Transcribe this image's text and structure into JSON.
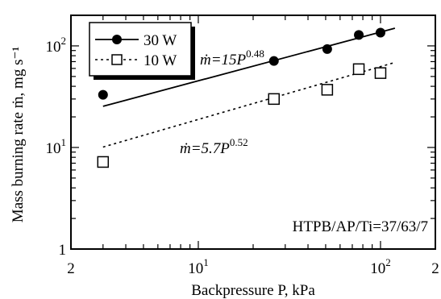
{
  "chart_data": {
    "type": "scatter",
    "title": "",
    "xlabel": "Backpressure  P, kPa",
    "ylabel": "Mass burning rate  ṁ, mg s⁻¹",
    "xscale": "log",
    "yscale": "log",
    "xlim": [
      2,
      200
    ],
    "ylim": [
      1,
      200
    ],
    "x_ticks": [
      {
        "value": 2,
        "base": "2",
        "exp": ""
      },
      {
        "value": 10,
        "base": "10",
        "exp": "1"
      },
      {
        "value": 100,
        "base": "10",
        "exp": "2"
      },
      {
        "value": 200,
        "base": "2",
        "exp": ""
      }
    ],
    "y_ticks": [
      {
        "value": 1,
        "base": "1",
        "exp": ""
      },
      {
        "value": 10,
        "base": "10",
        "exp": "1"
      },
      {
        "value": 100,
        "base": "10",
        "exp": "2"
      }
    ],
    "legend_position": "top-left",
    "series": [
      {
        "name": "30 W",
        "marker": "filled-circle",
        "line_style": "solid",
        "x": [
          3,
          26,
          51,
          76,
          100
        ],
        "y": [
          33,
          71,
          93,
          128,
          135
        ],
        "fit": {
          "coef": 15,
          "exp": 0.48,
          "label_base": "ṁ=15P",
          "label_exp": "0.48",
          "x_range": [
            3,
            120
          ]
        }
      },
      {
        "name": "10 W",
        "marker": "open-square",
        "line_style": "dotted",
        "x": [
          3,
          26,
          51,
          76,
          100
        ],
        "y": [
          7.2,
          30,
          37,
          59,
          54
        ],
        "fit": {
          "coef": 5.7,
          "exp": 0.52,
          "label_base": "ṁ=5.7P",
          "label_exp": "0.52",
          "x_range": [
            3,
            120
          ]
        }
      }
    ],
    "annotation": "HTPB/AP/Ti=37/63/7"
  }
}
